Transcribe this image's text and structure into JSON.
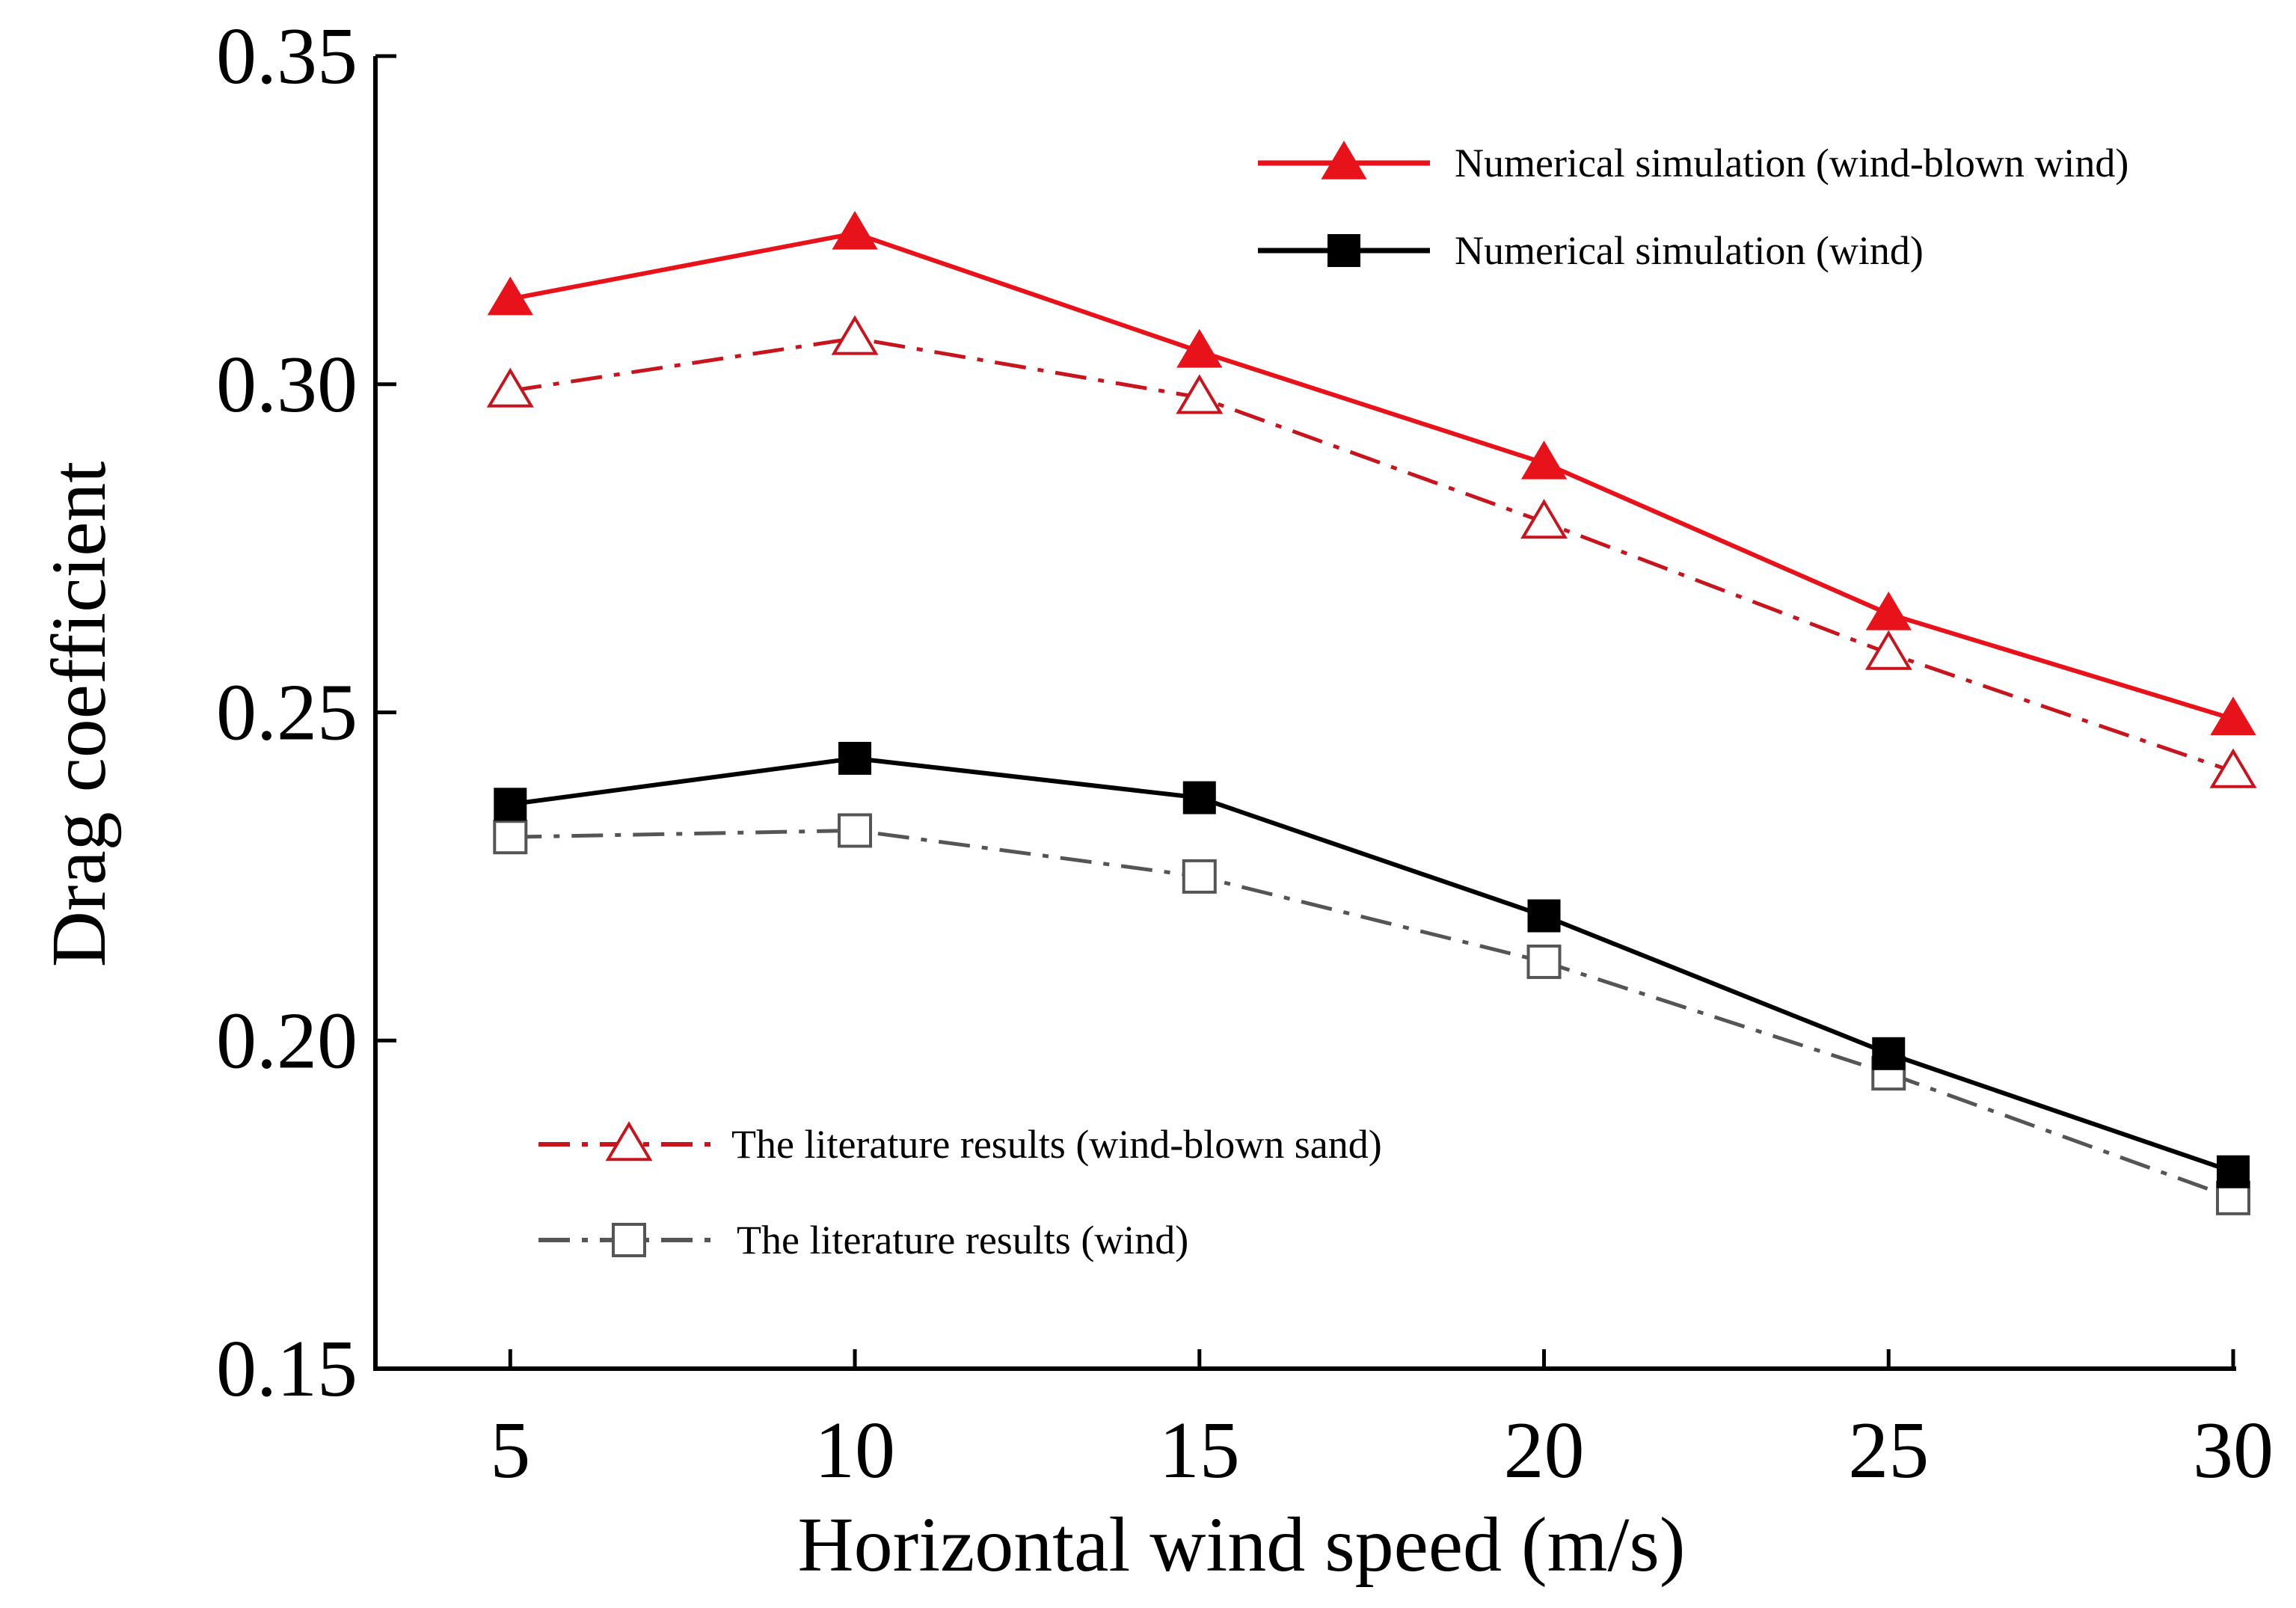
{
  "chart_data": {
    "type": "line",
    "title": "",
    "xlabel": "Horizontal wind speed (m/s)",
    "ylabel": "Drag coefficient",
    "x": [
      5,
      10,
      15,
      20,
      25,
      30
    ],
    "x_tick_labels": [
      "5",
      "10",
      "15",
      "20",
      "25",
      "30"
    ],
    "xlim": [
      3,
      30
    ],
    "ylim": [
      0.15,
      0.35
    ],
    "y_ticks": [
      0.15,
      0.2,
      0.25,
      0.3,
      0.35
    ],
    "y_tick_labels": [
      "0.15",
      "0.20",
      "0.25",
      "0.30",
      "0.35"
    ],
    "grid": false,
    "series": [
      {
        "name": "Numerical simulation (wind-blown wind)",
        "values": [
          0.313,
          0.323,
          0.305,
          0.288,
          0.265,
          0.249
        ],
        "color": "#e8121a",
        "line_style": "solid",
        "marker": "triangle-filled",
        "legend_position": "top-right"
      },
      {
        "name": "Numerical simulation (wind)",
        "values": [
          0.236,
          0.243,
          0.237,
          0.219,
          0.198,
          0.18
        ],
        "color": "#000000",
        "line_style": "solid",
        "marker": "square-filled",
        "legend_position": "top-right"
      },
      {
        "name": "The literature results (wind-blown sand)",
        "values": [
          0.299,
          0.307,
          0.298,
          0.279,
          0.259,
          0.241
        ],
        "color": "#c8141c",
        "line_style": "dash-dot",
        "marker": "triangle-open",
        "legend_position": "bottom-left"
      },
      {
        "name": "The literature results (wind)",
        "values": [
          0.231,
          0.232,
          0.225,
          0.212,
          0.195,
          0.176
        ],
        "color": "#555555",
        "line_style": "dash-dot",
        "marker": "square-open",
        "legend_position": "bottom-left"
      }
    ]
  }
}
